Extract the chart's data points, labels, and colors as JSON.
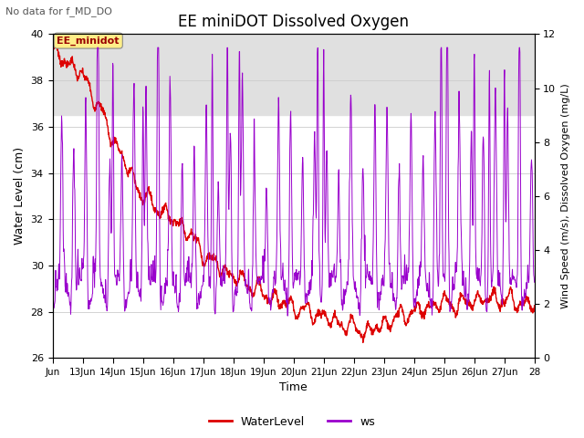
{
  "title": "EE miniDOT Dissolved Oxygen",
  "subtitle": "No data for f_MD_DO",
  "xlabel": "Time",
  "ylabel_left": "Water Level (cm)",
  "ylabel_right": "Wind Speed (m/s), Dissolved Oxygen (mg/L)",
  "ylim_left": [
    26,
    40
  ],
  "ylim_right": [
    0,
    12
  ],
  "yticks_left": [
    26,
    28,
    30,
    32,
    34,
    36,
    38,
    40
  ],
  "yticks_right": [
    0,
    2,
    4,
    6,
    8,
    10,
    12
  ],
  "date_start": 12,
  "date_end": 28,
  "xtick_labels": [
    "Jun",
    "13Jun",
    "14Jun",
    "15Jun",
    "16Jun",
    "17Jun",
    "18Jun",
    "19Jun",
    "20Jun",
    "21Jun",
    "22Jun",
    "23Jun",
    "24Jun",
    "25Jun",
    "26Jun",
    "27Jun",
    "28"
  ],
  "xtick_positions": [
    12,
    13,
    14,
    15,
    16,
    17,
    18,
    19,
    20,
    21,
    22,
    23,
    24,
    25,
    26,
    27,
    28
  ],
  "water_level_color": "#dd0000",
  "ws_color": "#9900cc",
  "legend_labels": [
    "WaterLevel",
    "ws"
  ],
  "ee_minidot_box_color": "#ffee88",
  "ee_minidot_text": "EE_minidot",
  "bg_band_color": "#e0e0e0",
  "bg_band_ymin": 36.5,
  "bg_band_ymax": 40.5,
  "figwidth": 6.4,
  "figheight": 4.8,
  "dpi": 100
}
